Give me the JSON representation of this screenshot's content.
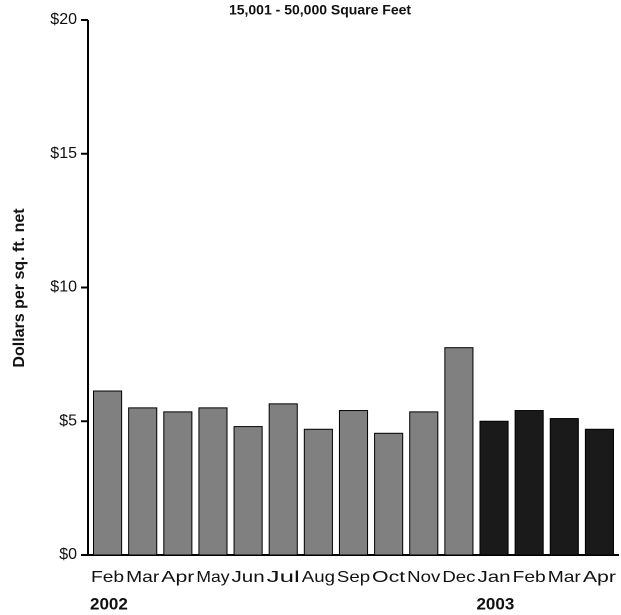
{
  "chart_data": {
    "type": "bar",
    "title": "15,001 - 50,000 Square Feet",
    "y_label": "Dollars per sq. ft. net",
    "categories": [
      "Feb",
      "Mar",
      "Apr",
      "May",
      "Jun",
      "Jul",
      "Aug",
      "Sep",
      "Oct",
      "Nov",
      "Dec",
      "Jan",
      "Feb",
      "Mar",
      "Apr"
    ],
    "series": [
      {
        "name": "2002",
        "color": "#808080",
        "values": [
          6.13,
          5.5,
          5.35,
          5.5,
          4.8,
          5.65,
          4.7,
          5.4,
          4.55,
          5.35,
          7.75,
          null,
          null,
          null,
          null
        ]
      },
      {
        "name": "2003",
        "color": "#1a1a1a",
        "values": [
          null,
          null,
          null,
          null,
          null,
          null,
          null,
          null,
          null,
          null,
          null,
          5.0,
          5.4,
          5.1,
          4.7
        ]
      }
    ],
    "ylim": [
      0,
      20
    ],
    "yticks": [
      {
        "value": 0,
        "label": "$0"
      },
      {
        "value": 5,
        "label": "$5"
      },
      {
        "value": 10,
        "label": "$10"
      },
      {
        "value": 15,
        "label": "$15"
      },
      {
        "value": 20,
        "label": "$20"
      }
    ]
  }
}
